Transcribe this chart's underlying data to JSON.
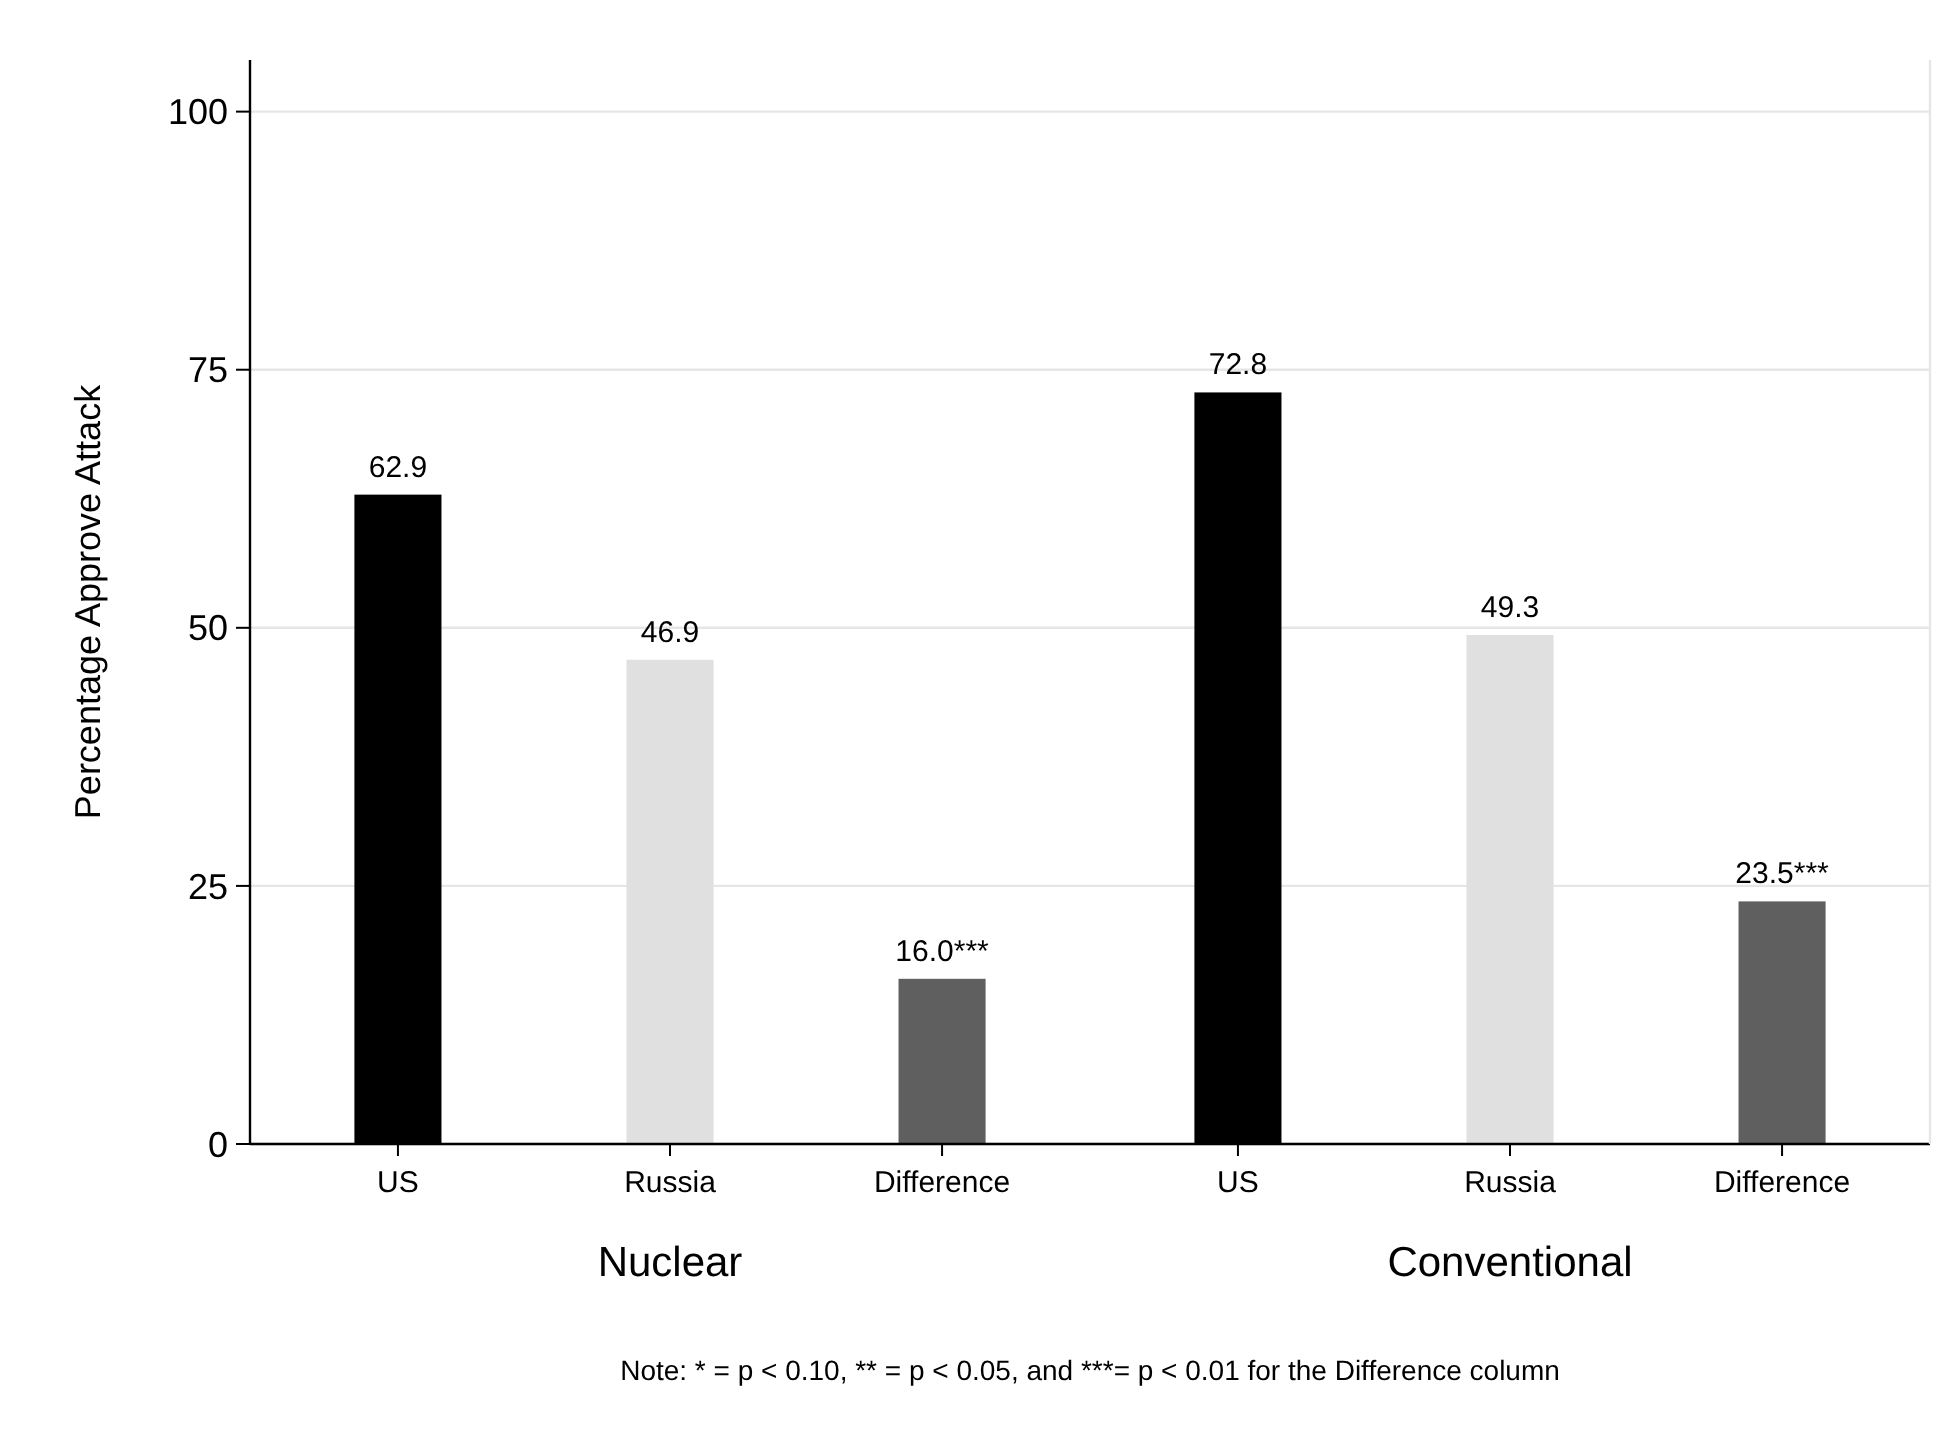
{
  "chart_data": [
    {
      "type": "bar",
      "categories": [
        "US",
        "Russia",
        "Difference"
      ],
      "values": [
        62.9,
        46.9,
        16.0
      ],
      "colors": [
        "#000000",
        "#e0e0e0",
        "#5f5f5f"
      ],
      "value_labels": [
        "62.9",
        "46.9",
        "16.0***"
      ],
      "xlabel": "Nuclear",
      "ylabel": "Percentage Approve Attack",
      "ylim": [
        0,
        105
      ],
      "yticks": [
        0,
        25,
        50,
        75,
        100
      ],
      "grid": "y",
      "annotations": [
        "Note: * = p < 0.10, ** = p < 0.05, and ***= p < 0.01 for the Difference column"
      ]
    },
    {
      "type": "bar",
      "categories": [
        "US",
        "Russia",
        "Difference"
      ],
      "values": [
        72.8,
        49.3,
        23.5
      ],
      "colors": [
        "#000000",
        "#e0e0e0",
        "#5f5f5f"
      ],
      "value_labels": [
        "72.8",
        "49.3",
        "23.5***"
      ],
      "xlabel": "Conventional",
      "ylim": [
        0,
        105
      ],
      "yticks": [
        0,
        25,
        50,
        75,
        100
      ],
      "grid": "y",
      "tick_labels": "x"
    }
  ]
}
